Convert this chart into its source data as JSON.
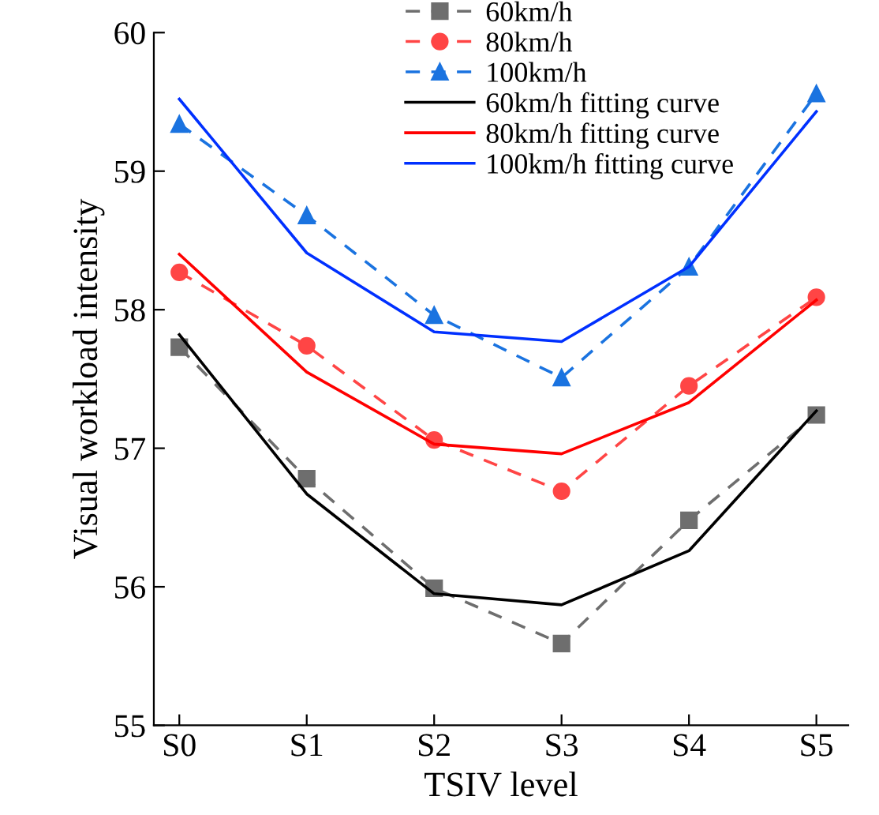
{
  "chart_data": {
    "type": "line",
    "xlabel": "TSIV level",
    "ylabel": "Visual workload intensity",
    "categories": [
      "S0",
      "S1",
      "S2",
      "S3",
      "S4",
      "S5"
    ],
    "ylim": [
      55,
      60
    ],
    "yticks": [
      55,
      56,
      57,
      58,
      59,
      60
    ],
    "grid": false,
    "legend": "top right",
    "series": [
      {
        "name": "60km/h",
        "color": "#6e6e6e",
        "marker": "square",
        "line_style": "dashed",
        "values": [
          57.73,
          56.78,
          55.99,
          55.59,
          56.48,
          57.24
        ]
      },
      {
        "name": "80km/h",
        "color": "#ff4545",
        "marker": "circle",
        "line_style": "dashed",
        "values": [
          58.27,
          57.74,
          57.06,
          56.69,
          57.45,
          58.09
        ]
      },
      {
        "name": "100km/h",
        "color": "#1a73e0",
        "marker": "triangle",
        "line_style": "dashed",
        "values": [
          59.34,
          58.68,
          57.96,
          57.51,
          58.31,
          59.56
        ]
      },
      {
        "name": "60km/h fitting curve",
        "color": "#000000",
        "marker": "none",
        "line_style": "solid",
        "values": [
          57.82,
          56.67,
          55.95,
          55.87,
          56.26,
          57.27
        ]
      },
      {
        "name": "80km/h fitting curve",
        "color": "#ff0000",
        "marker": "none",
        "line_style": "solid",
        "values": [
          58.4,
          57.55,
          57.03,
          56.96,
          57.33,
          58.07
        ]
      },
      {
        "name": "100km/h fitting curve",
        "color": "#0030ff",
        "marker": "none",
        "line_style": "solid",
        "values": [
          59.52,
          58.41,
          57.84,
          57.77,
          58.31,
          59.43
        ]
      }
    ]
  }
}
